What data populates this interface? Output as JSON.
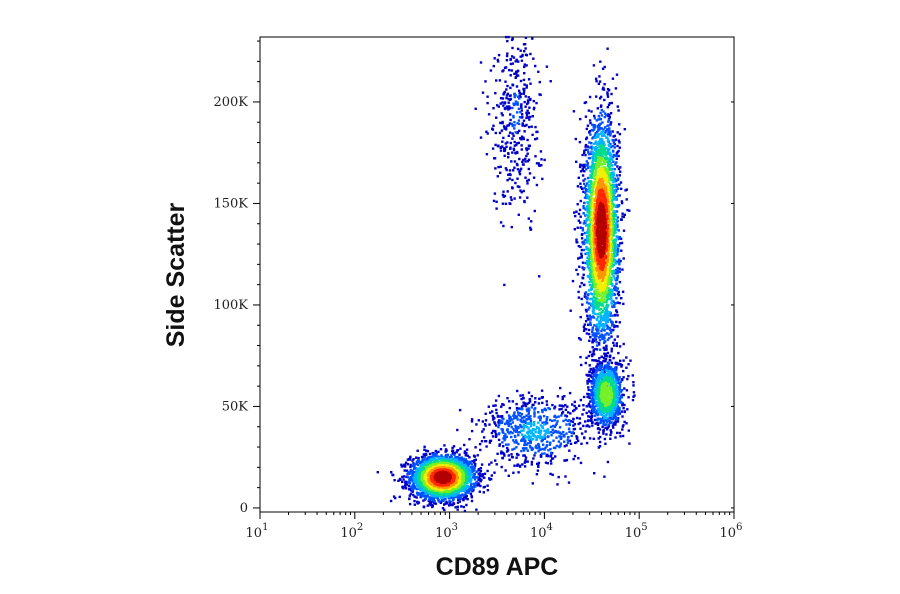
{
  "chart_data": {
    "type": "scatter",
    "plot_style": "pseudocolor density dot plot (flow cytometry)",
    "xlabel": "CD89 APC",
    "ylabel": "Side Scatter",
    "x_scale": "log",
    "xlim": [
      10,
      1000000
    ],
    "y_scale": "linear",
    "ylim": [
      -2000,
      232000
    ],
    "x_ticks": [
      {
        "base": "10",
        "exp": "1",
        "value": 10
      },
      {
        "base": "10",
        "exp": "2",
        "value": 100
      },
      {
        "base": "10",
        "exp": "3",
        "value": 1000
      },
      {
        "base": "10",
        "exp": "4",
        "value": 10000
      },
      {
        "base": "10",
        "exp": "5",
        "value": 100000
      },
      {
        "base": "10",
        "exp": "6",
        "value": 1000000
      }
    ],
    "y_ticks": [
      {
        "label": "0",
        "value": 0
      },
      {
        "label": "50K",
        "value": 50000
      },
      {
        "label": "100K",
        "value": 100000
      },
      {
        "label": "150K",
        "value": 150000
      },
      {
        "label": "200K",
        "value": 200000
      }
    ],
    "grid": false,
    "legend": "none",
    "color_scale": [
      "#0000c8",
      "#0050ff",
      "#00b4ff",
      "#00dc8c",
      "#78f028",
      "#f0f000",
      "#ff9600",
      "#ff2800",
      "#b40000"
    ],
    "populations": [
      {
        "x_center": 850,
        "y_center": 15000,
        "x_spread_decades": 0.17,
        "y_spread": 5500,
        "points": 2600,
        "peak_density": 1.0
      },
      {
        "x_center": 40000,
        "y_center": 137000,
        "x_spread_decades": 0.09,
        "y_spread": 27000,
        "points": 3200,
        "peak_density": 1.0
      },
      {
        "x_center": 45000,
        "y_center": 56000,
        "x_spread_decades": 0.09,
        "y_spread": 8500,
        "points": 1100,
        "peak_density": 0.55
      },
      {
        "x_center": 5000,
        "y_center": 195000,
        "x_spread_decades": 0.13,
        "y_spread": 26000,
        "points": 420,
        "peak_density": 0.12
      },
      {
        "x_center": 8000,
        "y_center": 38000,
        "x_spread_decades": 0.3,
        "y_spread": 9000,
        "points": 650,
        "peak_density": 0.25
      }
    ]
  }
}
